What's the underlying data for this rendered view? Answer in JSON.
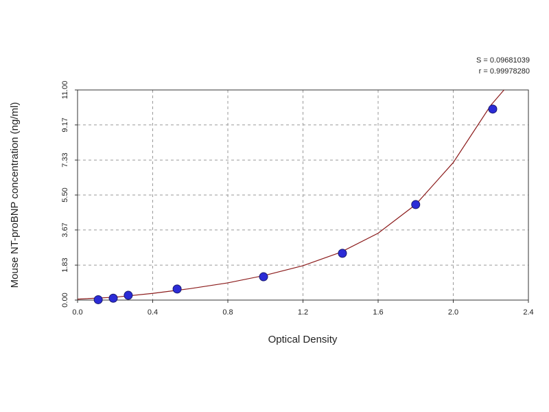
{
  "chart_data": {
    "type": "scatter",
    "xlabel": "Optical Density",
    "ylabel": "Mouse NT-proBNP concentration (ng/ml)",
    "annotations": [
      "S = 0.09681039",
      "r = 0.99978280"
    ],
    "xlim": [
      0,
      2.4
    ],
    "xticks": [
      {
        "value": 0,
        "label": "0.0"
      },
      0.4,
      0.8,
      1.2,
      1.6,
      {
        "value": 2,
        "label": "2.0"
      },
      2.4
    ],
    "ylim": [
      0,
      11
    ],
    "yticks": [
      {
        "value": 0,
        "label": "0.00"
      },
      1.83,
      3.67,
      {
        "value": 5.5,
        "label": "5.50"
      },
      7.33,
      9.17,
      {
        "value": 11,
        "label": "11.00"
      }
    ],
    "grid": true,
    "series": [
      {
        "type": "line",
        "color": "#8b1a1a",
        "x": [
          0,
          0.2,
          0.4,
          0.6,
          0.8,
          1.0,
          1.2,
          1.4,
          1.6,
          1.8,
          2.0,
          2.2,
          2.27
        ],
        "values": [
          0.05,
          0.15,
          0.35,
          0.6,
          0.9,
          1.3,
          1.8,
          2.5,
          3.5,
          5.0,
          7.2,
          10.2,
          11.0
        ]
      },
      {
        "type": "scatter",
        "color": "#2b2bd6",
        "x": [
          0.11,
          0.19,
          0.27,
          0.53,
          0.99,
          1.41,
          1.8,
          2.21
        ],
        "values": [
          0.02,
          0.1,
          0.25,
          0.58,
          1.22,
          2.45,
          5.0,
          10.0
        ]
      }
    ]
  }
}
